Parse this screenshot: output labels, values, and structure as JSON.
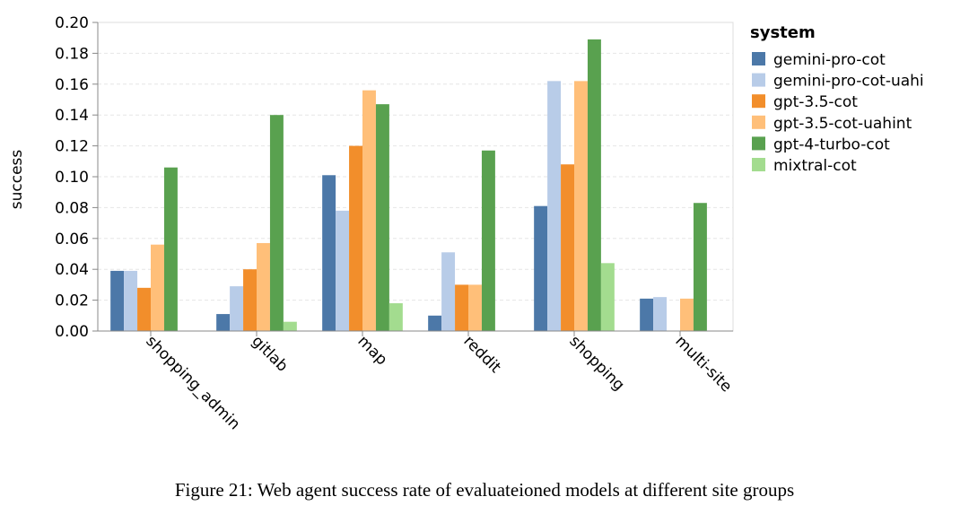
{
  "chart_data": {
    "type": "bar",
    "ylabel": "success",
    "xlabel": "",
    "ylim": [
      0,
      0.2
    ],
    "yticks": [
      "0.00",
      "0.02",
      "0.04",
      "0.06",
      "0.08",
      "0.10",
      "0.12",
      "0.14",
      "0.16",
      "0.18",
      "0.20"
    ],
    "ytick_values": [
      0,
      0.02,
      0.04,
      0.06,
      0.08,
      0.1,
      0.12,
      0.14,
      0.16,
      0.18,
      0.2
    ],
    "grid": true,
    "legend_title": "system",
    "legend_position": "right",
    "categories": [
      "shopping_admin",
      "gitlab",
      "map",
      "reddit",
      "shopping",
      "multi-site"
    ],
    "series": [
      {
        "name": "gemini-pro-cot",
        "color": "#4c78a8",
        "values": [
          0.039,
          0.011,
          0.101,
          0.01,
          0.081,
          0.021
        ]
      },
      {
        "name": "gemini-pro-cot-uahi",
        "color": "#b8cce8",
        "values": [
          0.039,
          0.029,
          0.078,
          0.051,
          0.162,
          0.022
        ]
      },
      {
        "name": "gpt-3.5-cot",
        "color": "#f28e2b",
        "values": [
          0.028,
          0.04,
          0.12,
          0.03,
          0.108,
          0.0
        ]
      },
      {
        "name": "gpt-3.5-cot-uahint",
        "color": "#ffbf79",
        "values": [
          0.056,
          0.057,
          0.156,
          0.03,
          0.162,
          0.021
        ]
      },
      {
        "name": "gpt-4-turbo-cot",
        "color": "#59a14f",
        "values": [
          0.106,
          0.14,
          0.147,
          0.117,
          0.189,
          0.083
        ]
      },
      {
        "name": "mixtral-cot",
        "color": "#a3dc8f",
        "values": [
          0.0,
          0.006,
          0.018,
          0.0,
          0.044,
          0.0
        ]
      }
    ]
  },
  "caption": "Figure 21: Web agent success rate of evaluateioned models at different site groups"
}
